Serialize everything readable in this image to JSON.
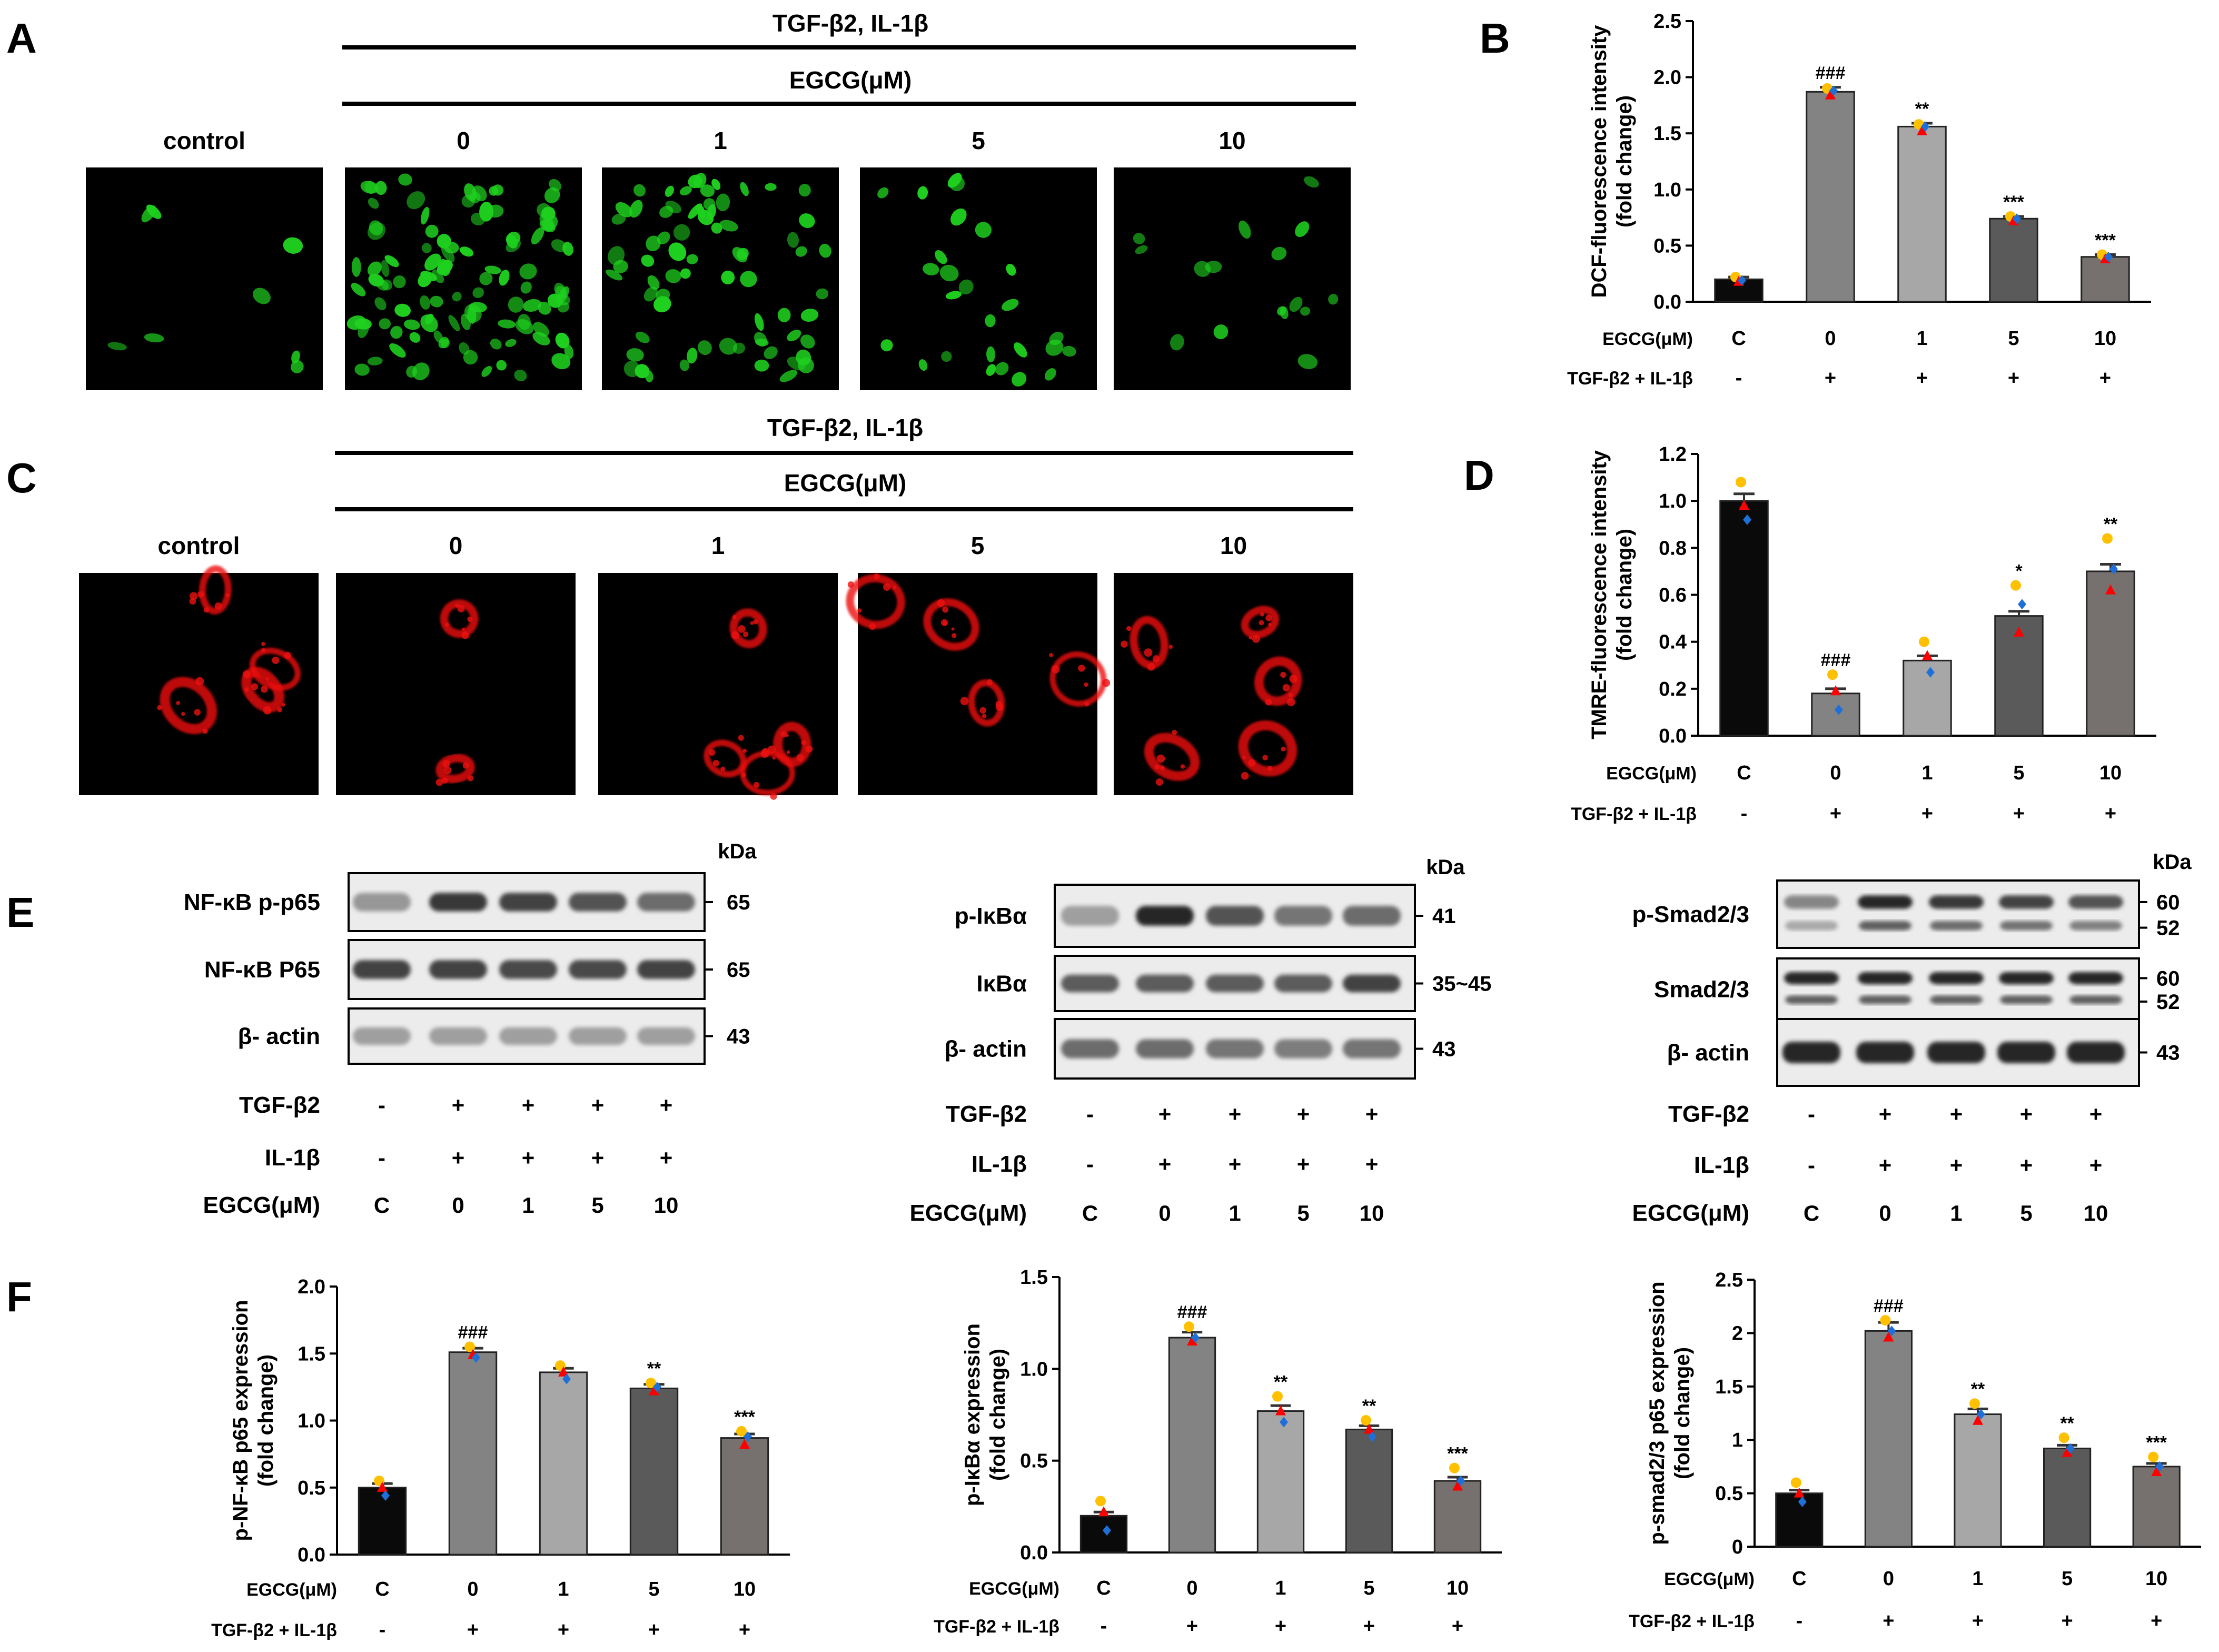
{
  "panels": {
    "A": "A",
    "B": "B",
    "C": "C",
    "D": "D",
    "E": "E",
    "F": "F"
  },
  "microscopy": {
    "treatment_header": "TGF-β2, IL-1β",
    "egcg_header": "EGCG(μM)",
    "columns": [
      "control",
      "0",
      "1",
      "5",
      "10"
    ],
    "dcf_color": "#1fd11f",
    "tmre_color": "#ee1010"
  },
  "blots": [
    {
      "id": "nfkb",
      "kda_label": "kDa",
      "rows": [
        {
          "label": "NF-κB p-p65",
          "kda": "65"
        },
        {
          "label": "NF-κB P65",
          "kda": "65"
        },
        {
          "label": "β- actin",
          "kda": "43"
        }
      ],
      "conditions": [
        {
          "label": "TGF-β2",
          "values": [
            "-",
            "+",
            "+",
            "+",
            "+"
          ]
        },
        {
          "label": "IL-1β",
          "values": [
            "-",
            "+",
            "+",
            "+",
            "+"
          ]
        },
        {
          "label": "EGCG(μM)",
          "values": [
            "C",
            "0",
            "1",
            "5",
            "10"
          ]
        }
      ]
    },
    {
      "id": "ikba",
      "kda_label": "kDa",
      "rows": [
        {
          "label": "p-IκBα",
          "kda": "41"
        },
        {
          "label": "IκBα",
          "kda": "35~45"
        },
        {
          "label": "β- actin",
          "kda": "43"
        }
      ],
      "conditions": [
        {
          "label": "TGF-β2",
          "values": [
            "-",
            "+",
            "+",
            "+",
            "+"
          ]
        },
        {
          "label": "IL-1β",
          "values": [
            "-",
            "+",
            "+",
            "+",
            "+"
          ]
        },
        {
          "label": "EGCG(μM)",
          "values": [
            "C",
            "0",
            "1",
            "5",
            "10"
          ]
        }
      ]
    },
    {
      "id": "smad",
      "kda_label": "kDa",
      "rows": [
        {
          "label": "p-Smad2/3",
          "kda": "60",
          "kda2": "52"
        },
        {
          "label": "Smad2/3",
          "kda": "60",
          "kda2": "52"
        },
        {
          "label": "β- actin",
          "kda": "43"
        }
      ],
      "conditions": [
        {
          "label": "TGF-β2",
          "values": [
            "-",
            "+",
            "+",
            "+",
            "+"
          ]
        },
        {
          "label": "IL-1β",
          "values": [
            "-",
            "+",
            "+",
            "+",
            "+"
          ]
        },
        {
          "label": "EGCG(μM)",
          "values": [
            "C",
            "0",
            "1",
            "5",
            "10"
          ]
        }
      ]
    }
  ],
  "chart_data": [
    {
      "id": "B",
      "type": "bar",
      "categories": [
        "C",
        "0",
        "1",
        "5",
        "10"
      ],
      "values": [
        0.2,
        1.87,
        1.56,
        0.74,
        0.4
      ],
      "errors": [
        0.02,
        0.04,
        0.03,
        0.02,
        0.02
      ],
      "significance": [
        "",
        "###",
        "**",
        "***",
        "***"
      ],
      "points": [
        [
          0.22,
          0.18,
          0.19
        ],
        [
          1.9,
          1.84,
          1.88
        ],
        [
          1.58,
          1.52,
          1.56
        ],
        [
          0.76,
          0.72,
          0.74
        ],
        [
          0.42,
          0.38,
          0.4
        ]
      ],
      "ylabel": "DCF-fluorescence intensity\n(fold change)",
      "ylim": [
        0,
        2.5
      ],
      "yticks": [
        "0.0",
        "0.5",
        "1.0",
        "1.5",
        "2.0",
        "2.5"
      ],
      "row_labels": [
        "EGCG(μM)",
        "TGF-β2 + IL-1β"
      ],
      "treatment": [
        "-",
        "+",
        "+",
        "+",
        "+"
      ]
    },
    {
      "id": "D",
      "type": "bar",
      "categories": [
        "C",
        "0",
        "1",
        "5",
        "10"
      ],
      "values": [
        1.0,
        0.18,
        0.32,
        0.51,
        0.7
      ],
      "errors": [
        0.03,
        0.02,
        0.02,
        0.02,
        0.03
      ],
      "significance": [
        "",
        "###",
        "",
        "*",
        "**"
      ],
      "points": [
        [
          1.08,
          0.98,
          0.92
        ],
        [
          0.26,
          0.19,
          0.11
        ],
        [
          0.4,
          0.34,
          0.27
        ],
        [
          0.64,
          0.44,
          0.56
        ],
        [
          0.84,
          0.62,
          0.71
        ]
      ],
      "ylabel": "TMRE-fluorescence intensity\n(fold change)",
      "ylim": [
        0,
        1.2
      ],
      "yticks": [
        "0.0",
        "0.2",
        "0.4",
        "0.6",
        "0.8",
        "1.0",
        "1.2"
      ],
      "row_labels": [
        "EGCG(μM)",
        "TGF-β2 + IL-1β"
      ],
      "treatment": [
        "-",
        "+",
        "+",
        "+",
        "+"
      ]
    },
    {
      "id": "F1",
      "type": "bar",
      "categories": [
        "C",
        "0",
        "1",
        "5",
        "10"
      ],
      "values": [
        0.5,
        1.51,
        1.36,
        1.24,
        0.87
      ],
      "errors": [
        0.03,
        0.03,
        0.03,
        0.03,
        0.03
      ],
      "significance": [
        "",
        "###",
        "",
        "**",
        "***"
      ],
      "points": [
        [
          0.55,
          0.5,
          0.44
        ],
        [
          1.55,
          1.49,
          1.47
        ],
        [
          1.41,
          1.36,
          1.31
        ],
        [
          1.28,
          1.22,
          1.25
        ],
        [
          0.92,
          0.82,
          0.88
        ]
      ],
      "ylabel": "p-NF-κB p65 expression\n(fold change)",
      "ylim": [
        0,
        2.0
      ],
      "yticks": [
        "0.0",
        "0.5",
        "1.0",
        "1.5",
        "2.0"
      ],
      "row_labels": [
        "EGCG(μM)",
        "TGF-β2 + IL-1β"
      ],
      "treatment": [
        "-",
        "+",
        "+",
        "+",
        "+"
      ]
    },
    {
      "id": "F2",
      "type": "bar",
      "categories": [
        "C",
        "0",
        "1",
        "5",
        "10"
      ],
      "values": [
        0.2,
        1.17,
        0.77,
        0.67,
        0.39
      ],
      "errors": [
        0.02,
        0.03,
        0.03,
        0.02,
        0.02
      ],
      "significance": [
        "",
        "###",
        "**",
        "**",
        "***"
      ],
      "points": [
        [
          0.28,
          0.22,
          0.12
        ],
        [
          1.23,
          1.15,
          1.17
        ],
        [
          0.85,
          0.77,
          0.71
        ],
        [
          0.72,
          0.67,
          0.63
        ],
        [
          0.46,
          0.36,
          0.39
        ]
      ],
      "ylabel": "p-IκBα expression\n(fold change)",
      "ylim": [
        0,
        1.5
      ],
      "yticks": [
        "0.0",
        "0.5",
        "1.0",
        "1.5"
      ],
      "row_labels": [
        "EGCG(μM)",
        "TGF-β2 + IL-1β"
      ],
      "treatment": [
        "-",
        "+",
        "+",
        "+",
        "+"
      ]
    },
    {
      "id": "F3",
      "type": "bar",
      "categories": [
        "C",
        "0",
        "1",
        "5",
        "10"
      ],
      "values": [
        0.5,
        2.02,
        1.24,
        0.92,
        0.75
      ],
      "errors": [
        0.03,
        0.08,
        0.05,
        0.03,
        0.03
      ],
      "significance": [
        "",
        "###",
        "**",
        "**",
        "***"
      ],
      "points": [
        [
          0.6,
          0.5,
          0.42
        ],
        [
          2.12,
          1.96,
          2.02
        ],
        [
          1.34,
          1.18,
          1.24
        ],
        [
          1.02,
          0.88,
          0.92
        ],
        [
          0.84,
          0.7,
          0.75
        ]
      ],
      "ylabel": "p-smad2/3 p65 expression\n(fold change)",
      "ylim": [
        0,
        2.5
      ],
      "yticks": [
        "0",
        "0.5",
        "1",
        "1.5",
        "2",
        "2.5"
      ],
      "row_labels": [
        "EGCG(μM)",
        "TGF-β2 + IL-1β"
      ],
      "treatment": [
        "-",
        "+",
        "+",
        "+",
        "+"
      ]
    }
  ]
}
